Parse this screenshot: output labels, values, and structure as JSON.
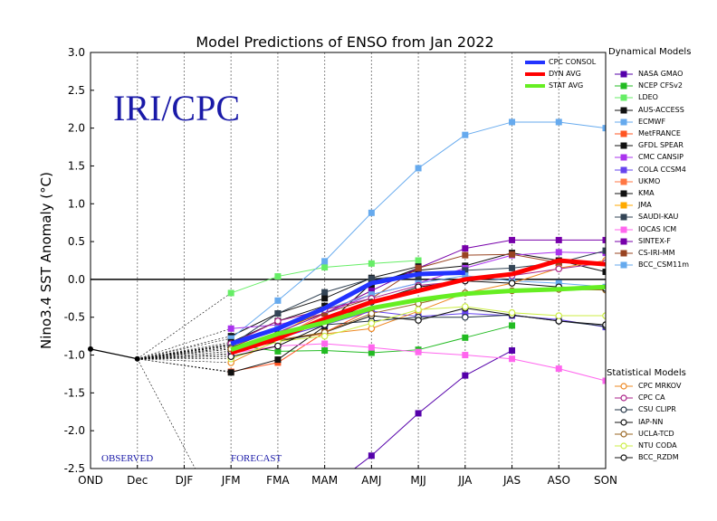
{
  "chart_data": {
    "type": "line",
    "title": "Model Predictions of ENSO from Jan 2022",
    "ylabel": "Nino3.4 SST Anomaly (°C)",
    "ylim": [
      -2.5,
      3.0
    ],
    "yticks": [
      "-2.5",
      "-2.0",
      "-1.5",
      "-1.0",
      "-0.5",
      "0.0",
      "0.5",
      "1.0",
      "1.5",
      "2.0",
      "2.5",
      "3.0"
    ],
    "categories": [
      "OND",
      "Dec",
      "DJF",
      "JFM",
      "FMA",
      "MAM",
      "AMJ",
      "MJJ",
      "JJA",
      "JAS",
      "ASO",
      "SON"
    ],
    "observed": {
      "label": "OBSERVED",
      "x": [
        0,
        1
      ],
      "values": [
        -0.92,
        -1.05
      ]
    },
    "forecast_label": "FORECAST",
    "watermark": "IRI/CPC",
    "consensus": [
      {
        "name": "CPC CONSOL",
        "color": "#2233ff",
        "x": [
          3,
          4,
          5,
          6,
          7,
          8
        ],
        "values": [
          -0.85,
          -0.65,
          -0.38,
          -0.05,
          0.07,
          0.09
        ]
      },
      {
        "name": "DYN AVG",
        "color": "#ff0000",
        "x": [
          3,
          4,
          5,
          6,
          7,
          8,
          9,
          10,
          11
        ],
        "values": [
          -0.97,
          -0.78,
          -0.52,
          -0.3,
          -0.15,
          0.0,
          0.07,
          0.25,
          0.2
        ]
      },
      {
        "name": "STAT AVG",
        "color": "#66ee22",
        "x": [
          3,
          4,
          5,
          6,
          7,
          8,
          9,
          10,
          11
        ],
        "values": [
          -0.93,
          -0.72,
          -0.57,
          -0.38,
          -0.27,
          -0.19,
          -0.15,
          -0.13,
          -0.1
        ]
      }
    ],
    "dynamical_title": "Dynamical Models",
    "dynamical": [
      {
        "name": "NASA GMAO",
        "color": "#5500aa",
        "x": [
          3,
          4,
          5,
          6,
          7,
          8,
          9
        ],
        "values": [
          -3.4,
          -3.1,
          -2.8,
          -2.33,
          -1.77,
          -1.27,
          -0.94
        ]
      },
      {
        "name": "NCEP CFSv2",
        "color": "#22bb22",
        "x": [
          3,
          4,
          5,
          6,
          7,
          8,
          9
        ],
        "values": [
          -0.86,
          -0.95,
          -0.94,
          -0.97,
          -0.93,
          -0.77,
          -0.61
        ]
      },
      {
        "name": "LDEO",
        "color": "#66ee66",
        "x": [
          3,
          4,
          5,
          6,
          7
        ],
        "values": [
          -0.18,
          0.04,
          0.16,
          0.21,
          0.25
        ]
      },
      {
        "name": "AUS-ACCESS",
        "color": "#111111",
        "x": [
          3,
          4,
          5,
          6,
          7
        ],
        "values": [
          -0.75,
          -0.45,
          -0.25,
          0.02,
          0.17
        ]
      },
      {
        "name": "ECMWF",
        "color": "#66aaee",
        "x": [
          3,
          4,
          5,
          6,
          7,
          8,
          9,
          10,
          11
        ],
        "values": [
          -0.78,
          -0.28,
          0.24,
          0.88,
          1.47,
          1.91,
          2.08,
          2.08,
          2.0
        ]
      },
      {
        "name": "MetFRANCE",
        "color": "#ff5522",
        "x": [
          3,
          4,
          5,
          6
        ],
        "values": [
          -1.22,
          -1.1,
          -0.7,
          -0.4
        ]
      },
      {
        "name": "GFDL SPEAR",
        "color": "#111111",
        "x": [
          3,
          4,
          5,
          6,
          7,
          8,
          9,
          10,
          11
        ],
        "values": [
          -1.23,
          -1.06,
          -0.62,
          -0.05,
          0.12,
          0.18,
          0.35,
          0.25,
          0.1
        ]
      },
      {
        "name": "CMC CANSIP",
        "color": "#aa33ee",
        "x": [
          3,
          4,
          5,
          6,
          7,
          8,
          9,
          10,
          11
        ],
        "values": [
          -0.65,
          -0.6,
          -0.45,
          -0.2,
          -0.05,
          0.15,
          0.32,
          0.36,
          0.35
        ]
      },
      {
        "name": "COLA CCSM4",
        "color": "#6644ee",
        "x": [
          3,
          4,
          5,
          6,
          7,
          8,
          9,
          10,
          11
        ],
        "values": [
          -0.98,
          -0.78,
          -0.6,
          -0.42,
          -0.49,
          -0.45,
          -0.48,
          -0.53,
          -0.63
        ]
      },
      {
        "name": "UKMO",
        "color": "#ff7744",
        "x": [
          3,
          4,
          5,
          6
        ],
        "values": [
          -1.0,
          -0.78,
          -0.45,
          -0.15
        ]
      },
      {
        "name": "KMA",
        "color": "#111111",
        "x": [
          3,
          4,
          5,
          6,
          7
        ],
        "values": [
          -0.83,
          -0.55,
          -0.35,
          -0.08,
          0.15
        ]
      },
      {
        "name": "JMA",
        "color": "#ffaa00",
        "x": [
          3,
          4,
          5,
          6
        ],
        "values": [
          -0.92,
          -0.72,
          -0.4,
          -0.2
        ]
      },
      {
        "name": "SAUDI-KAU",
        "color": "#334455",
        "x": [
          3,
          4,
          5,
          6,
          7,
          8,
          9,
          10,
          11
        ],
        "values": [
          -0.87,
          -0.45,
          -0.17,
          0.01,
          0.05,
          0.12,
          0.15,
          0.22,
          0.38
        ]
      },
      {
        "name": "IOCAS ICM",
        "color": "#ff66ee",
        "x": [
          3,
          4,
          5,
          6,
          7,
          8,
          9,
          10,
          11
        ],
        "values": [
          -0.98,
          -0.88,
          -0.85,
          -0.9,
          -0.96,
          -1.0,
          -1.05,
          -1.18,
          -1.34
        ]
      },
      {
        "name": "SINTEX-F",
        "color": "#7700aa",
        "x": [
          3,
          4,
          5,
          6,
          7,
          8,
          9,
          10,
          11
        ],
        "values": [
          -0.95,
          -0.7,
          -0.45,
          -0.15,
          0.15,
          0.41,
          0.52,
          0.52,
          0.52
        ]
      },
      {
        "name": "CS-IRI-MM",
        "color": "#994422",
        "x": [
          3,
          4,
          5,
          6,
          7,
          8,
          9,
          10,
          11
        ],
        "values": [
          -0.9,
          -0.65,
          -0.45,
          -0.25,
          0.15,
          0.32,
          0.33,
          0.22,
          0.22
        ]
      },
      {
        "name": "BCC_CSM11m",
        "color": "#66aaee",
        "x": [
          3,
          4,
          5,
          6,
          7,
          8,
          9,
          10,
          11
        ],
        "values": [
          -0.88,
          -0.65,
          -0.4,
          -0.2,
          -0.05,
          0.05,
          -0.02,
          -0.05,
          -0.1
        ]
      }
    ],
    "statistical_title": "Statistical Models",
    "statistical": [
      {
        "name": "CPC MRKOV",
        "color": "#ee8822",
        "x": [
          3,
          4,
          5,
          6,
          7,
          8,
          9,
          10,
          11
        ],
        "values": [
          -1.1,
          -0.8,
          -0.72,
          -0.65,
          -0.42,
          -0.18,
          -0.05,
          0.15,
          0.25
        ]
      },
      {
        "name": "CPC CA",
        "color": "#aa2288",
        "x": [
          3,
          4,
          5,
          6,
          7,
          8,
          9,
          10,
          11
        ],
        "values": [
          -0.85,
          -0.55,
          -0.4,
          -0.25,
          -0.08,
          -0.02,
          0.05,
          0.14,
          0.22
        ]
      },
      {
        "name": "CSU CLIPR",
        "color": "#223344",
        "x": [
          3,
          4,
          5,
          6,
          7,
          8,
          9,
          10,
          11
        ],
        "values": [
          -0.9,
          -0.72,
          -0.6,
          -0.55,
          -0.5,
          -0.5,
          -0.47,
          -0.55,
          -0.62
        ]
      },
      {
        "name": "IAP-NN",
        "color": "#111111",
        "x": [
          3,
          4,
          5,
          6,
          7,
          8,
          9,
          10,
          11
        ],
        "values": [
          -0.95,
          -0.82,
          -0.7,
          -0.48,
          -0.54,
          -0.38,
          -0.47,
          -0.55,
          -0.6
        ]
      },
      {
        "name": "UCLA-TCD",
        "color": "#996622",
        "x": [
          3,
          4,
          5,
          6,
          7,
          8,
          9,
          10,
          11
        ],
        "values": [
          -0.92,
          -0.8,
          -0.7,
          -0.45,
          -0.32,
          -0.18,
          -0.15,
          -0.13,
          -0.14
        ]
      },
      {
        "name": "NTU CODA",
        "color": "#ccee44",
        "x": [
          3,
          4,
          5,
          6,
          7,
          8,
          9,
          10,
          11
        ],
        "values": [
          -1.05,
          -0.82,
          -0.75,
          -0.58,
          -0.4,
          -0.36,
          -0.44,
          -0.48,
          -0.48
        ]
      },
      {
        "name": "BCC_RZDM",
        "color": "#111111",
        "x": [
          3,
          4,
          5,
          6,
          7,
          8,
          9,
          10,
          11
        ],
        "values": [
          -1.02,
          -0.88,
          -0.6,
          -0.3,
          -0.1,
          -0.02,
          -0.05,
          -0.1,
          -0.12
        ]
      }
    ]
  }
}
